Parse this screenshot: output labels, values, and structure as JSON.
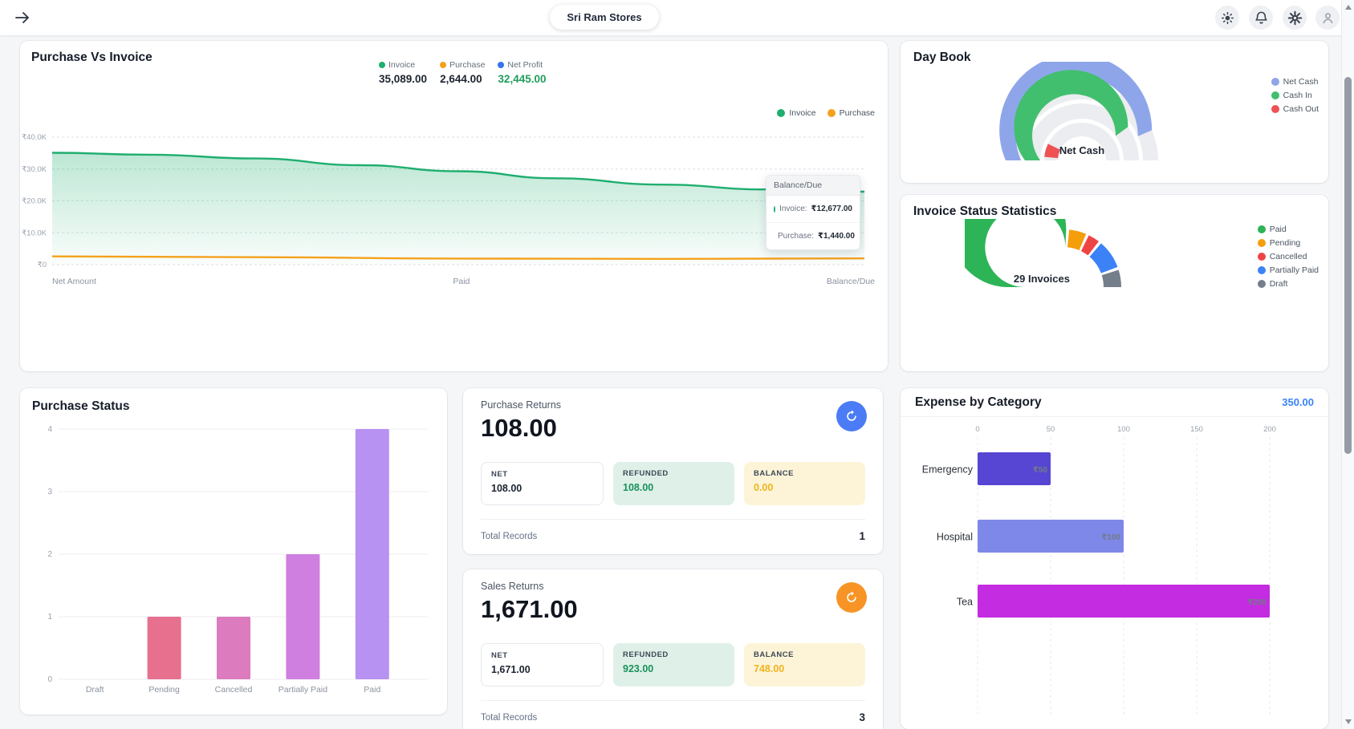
{
  "topbar": {
    "store_name": "Sri Ram Stores"
  },
  "purchase_returns": {
    "title": "Purchase Returns",
    "amount": "108.00",
    "stats": [
      {
        "label": "NET",
        "value": "108.00"
      },
      {
        "label": "REFUNDED",
        "value": "108.00"
      },
      {
        "label": "BALANCE",
        "value": "0.00"
      }
    ],
    "total_records_label": "Total Records",
    "total_records": "1"
  },
  "sales_returns": {
    "title": "Sales Returns",
    "amount": "1,671.00",
    "stats": [
      {
        "label": "NET",
        "value": "1,671.00"
      },
      {
        "label": "REFUNDED",
        "value": "923.00"
      },
      {
        "label": "BALANCE",
        "value": "748.00"
      }
    ],
    "total_records_label": "Total Records",
    "total_records": "3"
  },
  "chart_data": [
    {
      "id": "purchase-vs-invoice",
      "type": "area",
      "title": "Purchase Vs Invoice",
      "categories": [
        "Net Amount",
        "Paid",
        "Balance/Due"
      ],
      "y_ticks_labels": [
        "₹40.0K",
        "₹30.0K",
        "₹20.0K",
        "₹10.0K",
        "₹0"
      ],
      "y_tick_values": [
        40000,
        30000,
        20000,
        10000,
        0
      ],
      "ylim": [
        0,
        43000
      ],
      "grid": "dashed-horizontal",
      "legend_position": "top-right",
      "series": [
        {
          "name": "Invoice",
          "color": "#1fae6f",
          "total": 35089.0,
          "balance_due": 12677.0,
          "points": [
            [
              0,
              35089
            ],
            [
              0.12,
              34500
            ],
            [
              0.25,
              33300
            ],
            [
              0.38,
              31200
            ],
            [
              0.5,
              29300
            ],
            [
              0.62,
              27100
            ],
            [
              0.75,
              25100
            ],
            [
              0.88,
              23600
            ],
            [
              1,
              22900
            ]
          ]
        },
        {
          "name": "Purchase",
          "color": "#f5a11c",
          "total": 2644.0,
          "balance_due": 1440.0,
          "points": [
            [
              0,
              2600
            ],
            [
              0.25,
              2350
            ],
            [
              0.5,
              1900
            ],
            [
              0.75,
              1800
            ],
            [
              1,
              1950
            ]
          ]
        }
      ],
      "summary_legend": [
        {
          "label": "Invoice",
          "value": "35,089.00",
          "color": "#1fae6f",
          "value_color": "#1c2430"
        },
        {
          "label": "Purchase",
          "value": "2,644.00",
          "color": "#f5a11c",
          "value_color": "#1c2430"
        },
        {
          "label": "Net Profit",
          "value": "32,445.00",
          "color": "#3575ec",
          "value_color": "#1f9d5b"
        }
      ],
      "tooltip": {
        "title": "Balance/Due",
        "rows": [
          {
            "label": "Invoice:",
            "value": "₹12,677.00",
            "color": "#1fae6f"
          },
          {
            "label": "Purchase:",
            "value": "₹1,440.00",
            "color": "#f5a11c"
          }
        ]
      }
    },
    {
      "id": "day-book",
      "type": "gauge-multi-ring",
      "title": "Day Book",
      "center_label": "Net Cash",
      "track_color": "#ebedf0",
      "rings": [
        {
          "name": "Net Cash",
          "color": "#8ea6e9",
          "start": 0,
          "end": 0.87
        },
        {
          "name": "Cash In",
          "color": "#42bf6e",
          "start": 0,
          "end": 0.8
        },
        {
          "name": "Cash Out",
          "color": "#ee5253",
          "start": 0.03,
          "end": 0.145
        }
      ],
      "legend": [
        {
          "label": "Net Cash",
          "color": "#8ea6e9"
        },
        {
          "label": "Cash In",
          "color": "#42bf6e"
        },
        {
          "label": "Cash Out",
          "color": "#ee5253"
        }
      ]
    },
    {
      "id": "invoice-status",
      "type": "gauge-segments",
      "title": "Invoice Status Statistics",
      "center_label": "29 Invoices",
      "total_invoices": 29,
      "gap_degrees": 3,
      "segments": [
        {
          "label": "Paid",
          "value": 16,
          "color": "#2db457"
        },
        {
          "label": "Pending",
          "value": 3,
          "color": "#f59e0b"
        },
        {
          "label": "Cancelled",
          "value": 2,
          "color": "#ef4444"
        },
        {
          "label": "Partially Paid",
          "value": 5,
          "color": "#3b82f6"
        },
        {
          "label": "Draft",
          "value": 3,
          "color": "#747f8b"
        }
      ]
    },
    {
      "id": "purchase-status",
      "type": "bar",
      "title": "Purchase Status",
      "categories": [
        "Draft",
        "Pending",
        "Cancelled",
        "Partially Paid",
        "Paid"
      ],
      "values": [
        0,
        1,
        1,
        2,
        4
      ],
      "bar_colors": [
        null,
        "#e8708f",
        "#dc7cbe",
        "#cf7fdf",
        "#b892f2"
      ],
      "ylim": [
        0,
        4
      ],
      "y_ticks": [
        0,
        1,
        2,
        3,
        4
      ]
    },
    {
      "id": "expense-by-category",
      "type": "horizontal-bar",
      "title": "Expense by Category",
      "total_label": "350.00",
      "categories": [
        "Emergency",
        "Hospital",
        "Tea"
      ],
      "values": [
        50,
        100,
        200
      ],
      "value_labels": [
        "₹50",
        "₹100",
        "₹200"
      ],
      "colors": [
        "#5646d3",
        "#7e88e8",
        "#c32ce0"
      ],
      "xlim": [
        0,
        200
      ],
      "x_ticks": [
        0,
        50,
        100,
        150,
        200
      ],
      "grid": "dashed-vertical"
    }
  ]
}
